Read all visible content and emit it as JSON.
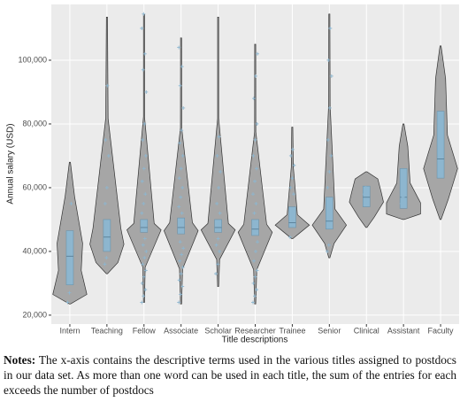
{
  "chart_data": {
    "type": "violin",
    "x_label": "Title descriptions",
    "y_label": "Annual salary (USD)",
    "categories": [
      "Intern",
      "Teaching",
      "Fellow",
      "Associate",
      "Scholar",
      "Researcher",
      "Trainee",
      "Senior",
      "Clinical",
      "Assistant",
      "Faculty"
    ],
    "min": [
      23500,
      33000,
      24000,
      23500,
      29000,
      23500,
      44000,
      38000,
      47500,
      50000,
      50000
    ],
    "q1": [
      29500,
      40000,
      46000,
      45500,
      46000,
      45000,
      47500,
      47000,
      54000,
      53500,
      63000
    ],
    "median": [
      38500,
      44500,
      47500,
      47500,
      47500,
      47000,
      49000,
      49500,
      57000,
      57000,
      69000
    ],
    "q3": [
      46500,
      50000,
      50000,
      50500,
      50000,
      50000,
      54000,
      57000,
      60500,
      66000,
      84000
    ],
    "max": [
      68000,
      113500,
      114500,
      107000,
      113500,
      105000,
      79000,
      114500,
      65000,
      80000,
      104500
    ],
    "points": [
      [
        24000,
        27000,
        55000
      ],
      [
        36000,
        38000,
        42000,
        55000,
        60000,
        70000,
        75000,
        92000
      ],
      [
        24000,
        26000,
        28000,
        30000,
        32000,
        34000,
        36000,
        38000,
        40000,
        42000,
        44000,
        52000,
        55000,
        58000,
        62000,
        66000,
        70000,
        75000,
        80000,
        90000,
        97000,
        102000,
        110000,
        114500
      ],
      [
        24000,
        26500,
        29000,
        31000,
        33000,
        35000,
        37000,
        39000,
        41000,
        43000,
        52000,
        54000,
        57000,
        60000,
        63000,
        66000,
        70000,
        74000,
        78000,
        85000,
        92000,
        98000,
        104000
      ],
      [
        33000,
        36000,
        40000,
        42000,
        44000,
        52000,
        55000,
        60000,
        65000,
        70000,
        76000
      ],
      [
        24000,
        26000,
        28000,
        30000,
        32000,
        34000,
        37000,
        40000,
        43000,
        52000,
        55000,
        58000,
        62000,
        66000,
        70000,
        75000,
        80000,
        88000,
        95000,
        102000
      ],
      [
        44500,
        52000,
        58000,
        60000,
        63000,
        67000,
        70000,
        72000
      ],
      [
        40000,
        42000,
        55000,
        60000,
        65000,
        70000,
        75000,
        85000,
        95000,
        100000,
        110000
      ],
      [
        58000,
        60000
      ],
      [
        55000,
        57000
      ],
      []
    ],
    "color": "#8db6cf",
    "violin_color": "#a6a6a6",
    "ylim": [
      17200,
      117500
    ],
    "yticks": [
      {
        "value": 20000,
        "label": "20,000"
      },
      {
        "value": 40000,
        "label": "40,000"
      },
      {
        "value": 60000,
        "label": "60,000"
      },
      {
        "value": 80000,
        "label": "80,000"
      },
      {
        "value": 100000,
        "label": "100,000"
      }
    ],
    "grid": true
  },
  "notes": {
    "label": "Notes:",
    "text": " The x-axis contains the descriptive terms used in the various titles assigned to postdocs in our data set. As more than one word can be used in each title, the sum of the entries for each exceeds the number of postdocs"
  }
}
